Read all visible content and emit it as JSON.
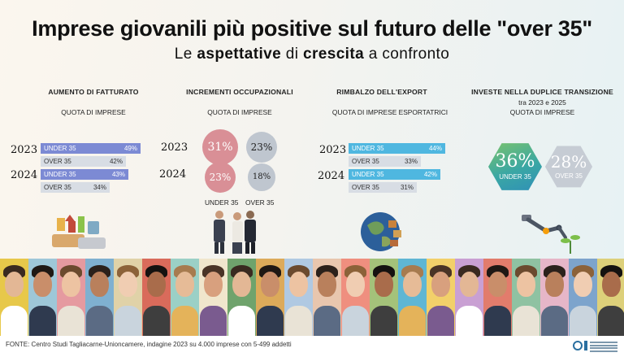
{
  "title": "Imprese giovanili più positive sul futuro delle \"over 35\"",
  "subtitle": {
    "part1": "Le ",
    "bold1": "aspettative",
    "part2": " di ",
    "bold2": "crescita",
    "part3": " a confronto"
  },
  "colors": {
    "under35_bar": "#7c8ad4",
    "over35_bar": "#d8dde4",
    "under35_circle": "#d98f96",
    "over35_circle": "#bfc6cf",
    "export_under35": "#4fb7e0",
    "export_over35": "#d8dde4",
    "hex_under35": "#3aa7a4",
    "hex_over35": "#c6ccd4"
  },
  "chart_data": [
    {
      "type": "bar",
      "title": "AUMENTO DI FATTURATO",
      "subtitle": "QUOTA DI IMPRESE",
      "categories": [
        "2023",
        "2024"
      ],
      "series": [
        {
          "name": "UNDER 35",
          "values": [
            49,
            43
          ],
          "labels": [
            "49%",
            "43%"
          ]
        },
        {
          "name": "OVER 35",
          "values": [
            42,
            34
          ],
          "labels": [
            "42%",
            "34%"
          ]
        }
      ],
      "units": "%"
    },
    {
      "type": "bubble",
      "title": "INCREMENTI OCCUPAZIONALI",
      "subtitle": "QUOTA DI IMPRESE",
      "categories": [
        "2023",
        "2024"
      ],
      "series": [
        {
          "name": "UNDER 35",
          "values": [
            31,
            23
          ],
          "labels": [
            "31%",
            "23%"
          ]
        },
        {
          "name": "OVER 35",
          "values": [
            23,
            18
          ],
          "labels": [
            "23%",
            "18%"
          ]
        }
      ],
      "units": "%"
    },
    {
      "type": "bar",
      "title": "RIMBALZO DELL'EXPORT",
      "subtitle": "QUOTA DI IMPRESE ESPORTATRICI",
      "categories": [
        "2023",
        "2024"
      ],
      "series": [
        {
          "name": "UNDER 35",
          "values": [
            44,
            42
          ],
          "labels": [
            "44%",
            "42%"
          ]
        },
        {
          "name": "OVER 35",
          "values": [
            33,
            31
          ],
          "labels": [
            "33%",
            "31%"
          ]
        }
      ],
      "units": "%"
    },
    {
      "type": "bubble",
      "title": "INVESTE NELLA DUPLICE TRANSIZIONE",
      "subtitle_line1": "tra 2023 e 2025",
      "subtitle_line2": "QUOTA DI IMPRESE",
      "categories": [
        "UNDER 35",
        "OVER 35"
      ],
      "values": [
        36,
        28
      ],
      "labels": [
        "36%",
        "28%"
      ],
      "units": "%"
    }
  ],
  "illustrations": [
    "money-stack-icon",
    "handshake-icon",
    "globe-icon",
    "robot-arm-plant-icon"
  ],
  "footer": {
    "source": "FONTE: Centro Studi Tagliacarne-Unioncamere, indagine 2023 su 4.000 imprese con 5-499 addetti"
  }
}
